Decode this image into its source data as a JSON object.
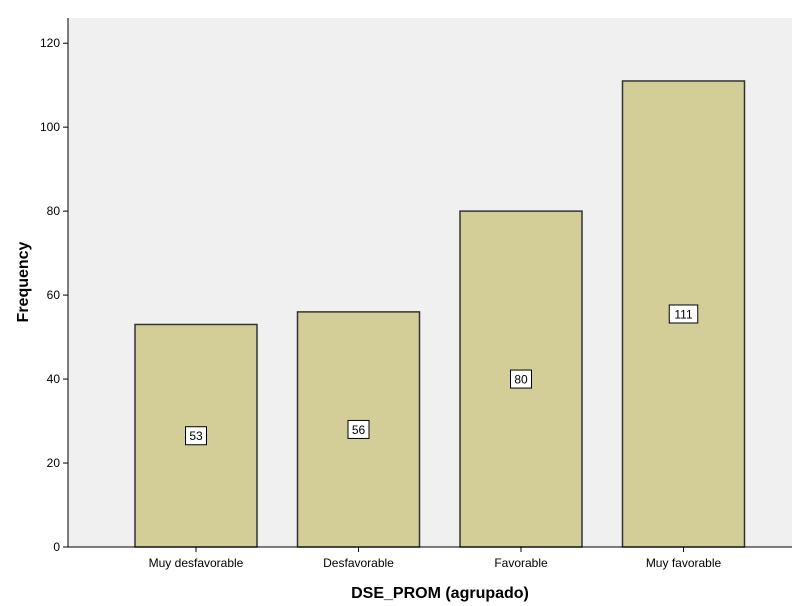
{
  "chart_data": {
    "type": "bar",
    "categories": [
      "Muy desfavorable",
      "Desfavorable",
      "Favorable",
      "Muy favorable"
    ],
    "values": [
      53,
      56,
      80,
      111
    ],
    "data_labels": [
      "53",
      "56",
      "80",
      "111"
    ],
    "xlabel": "DSE_PROM (agrupado)",
    "ylabel": "Frequency",
    "ylim": [
      0,
      126
    ],
    "yticks": [
      0,
      20,
      40,
      60,
      80,
      100,
      120
    ],
    "ytick_labels": [
      "0",
      "20",
      "40",
      "60",
      "80",
      "100",
      "120"
    ],
    "grid": false,
    "legend": "none",
    "colors": {
      "bar_fill": "#D3CE97",
      "bar_stroke": "#333333",
      "plot_background": "#F0F0F0",
      "axis": "#000000",
      "label_box_fill": "#FFFFFF"
    }
  }
}
